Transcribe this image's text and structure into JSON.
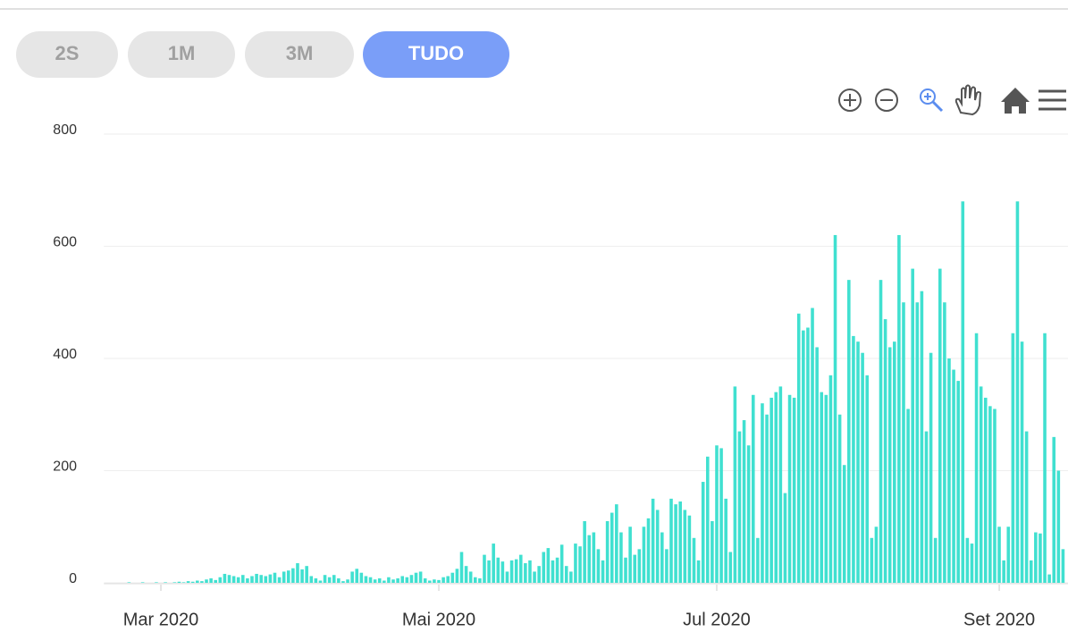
{
  "range_buttons": [
    "2S",
    "1M",
    "3M",
    "TUDO"
  ],
  "chart_data": {
    "type": "bar",
    "color": "#40e0d0",
    "grid": true,
    "ylim": [
      0,
      800
    ],
    "yticks": [
      0,
      200,
      400,
      600,
      800
    ],
    "categories": [
      null,
      null,
      null,
      null,
      null,
      null,
      null,
      null,
      null,
      null,
      null,
      null,
      "Mar 2020",
      null,
      null,
      null,
      null,
      null,
      null,
      null,
      null,
      null,
      null,
      null,
      null,
      null,
      null,
      null,
      null,
      null,
      null,
      null,
      null,
      null,
      null,
      null,
      null,
      null,
      null,
      null,
      null,
      null,
      null,
      null,
      null,
      null,
      null,
      null,
      null,
      null,
      null,
      null,
      null,
      null,
      null,
      null,
      null,
      null,
      null,
      null,
      null,
      null,
      null,
      null,
      null,
      null,
      null,
      null,
      null,
      null,
      null,
      null,
      null,
      "Mai 2020",
      null,
      null,
      null,
      null,
      null,
      null,
      null,
      null,
      null,
      null,
      null,
      null,
      null,
      null,
      null,
      null,
      null,
      null,
      null,
      null,
      null,
      null,
      null,
      null,
      null,
      null,
      null,
      null,
      null,
      null,
      null,
      null,
      null,
      null,
      null,
      null,
      null,
      null,
      null,
      null,
      null,
      null,
      null,
      null,
      null,
      null,
      null,
      null,
      null,
      null,
      null,
      null,
      null,
      null,
      null,
      null,
      null,
      null,
      null,
      null,
      "Jul 2020",
      null,
      null,
      null,
      null,
      null,
      null,
      null,
      null,
      null,
      null,
      null,
      null,
      null,
      null,
      null,
      null,
      null,
      null,
      null,
      null,
      null,
      null,
      null,
      null,
      null,
      null,
      null,
      null,
      null,
      null,
      null,
      null,
      null,
      null,
      null,
      null,
      null,
      null,
      null,
      null,
      null,
      null,
      null,
      null,
      null,
      null,
      null,
      null,
      null,
      null,
      null,
      null,
      null,
      null,
      null,
      null,
      null,
      null,
      null,
      null,
      null,
      "Set 2020",
      null,
      null,
      null,
      null,
      null,
      null,
      null,
      null,
      null,
      null,
      null,
      null,
      null,
      null
    ],
    "values": [
      0,
      0,
      0,
      0,
      0,
      1,
      0,
      0,
      1,
      0,
      0,
      1,
      0,
      1,
      0,
      1,
      2,
      1,
      3,
      2,
      4,
      3,
      6,
      8,
      5,
      10,
      16,
      14,
      12,
      10,
      14,
      8,
      12,
      16,
      14,
      12,
      15,
      18,
      10,
      20,
      22,
      26,
      35,
      24,
      30,
      12,
      8,
      4,
      14,
      10,
      14,
      8,
      3,
      6,
      20,
      25,
      18,
      12,
      10,
      6,
      8,
      4,
      10,
      6,
      8,
      12,
      10,
      14,
      18,
      20,
      8,
      4,
      6,
      5,
      10,
      12,
      18,
      25,
      55,
      30,
      20,
      10,
      8,
      50,
      40,
      70,
      45,
      38,
      20,
      40,
      42,
      50,
      35,
      40,
      20,
      30,
      55,
      62,
      40,
      45,
      68,
      30,
      20,
      70,
      65,
      110,
      85,
      90,
      60,
      40,
      110,
      125,
      140,
      90,
      45,
      100,
      50,
      60,
      100,
      115,
      150,
      130,
      90,
      60,
      150,
      140,
      145,
      130,
      120,
      80,
      40,
      180,
      225,
      110,
      245,
      240,
      150,
      55,
      350,
      270,
      290,
      245,
      335,
      80,
      320,
      300,
      330,
      340,
      350,
      160,
      335,
      330,
      480,
      450,
      455,
      490,
      420,
      340,
      335,
      370,
      620,
      300,
      210,
      540,
      440,
      430,
      410,
      370,
      80,
      100,
      540,
      470,
      420,
      430,
      620,
      500,
      310,
      560,
      500,
      520,
      270,
      410,
      80,
      560,
      500,
      400,
      380,
      360,
      680,
      80,
      70,
      445,
      350,
      330,
      315,
      310,
      100,
      40,
      100,
      445,
      680,
      430,
      270,
      40,
      90,
      88,
      445,
      15,
      260,
      200,
      60
    ]
  }
}
